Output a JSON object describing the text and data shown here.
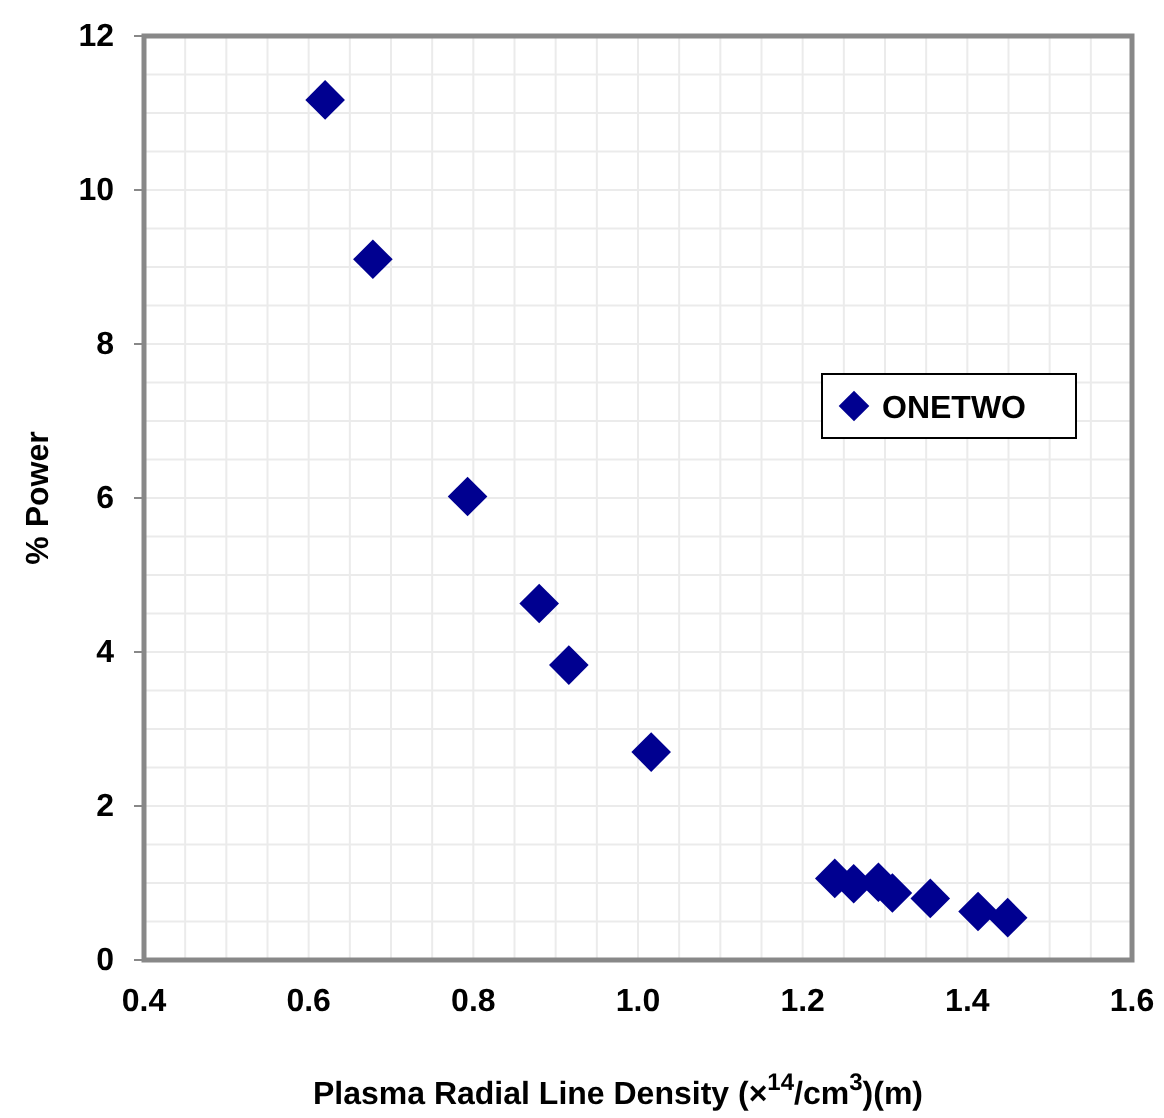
{
  "chart_data": {
    "type": "scatter",
    "xlabel": "Plasma Radial Line Density (×$^{14}$/cm$^{3}$)(m)",
    "ylabel": "% Power",
    "xlim": [
      0.4,
      1.6
    ],
    "xticks": [
      {
        "value": 0.4,
        "label": "0.4"
      },
      {
        "value": 0.6,
        "label": "0.6"
      },
      {
        "value": 0.8,
        "label": "0.8"
      },
      {
        "value": 1.0,
        "label": "1.0"
      },
      {
        "value": 1.2,
        "label": "1.2"
      },
      {
        "value": 1.4,
        "label": "1.4"
      },
      {
        "value": 1.6,
        "label": "1.6"
      }
    ],
    "ylim": [
      0,
      12
    ],
    "yticks": [
      0,
      2,
      4,
      6,
      8,
      10,
      12
    ],
    "grid": true,
    "legend": "right",
    "marker": "diamond",
    "series": [
      {
        "name": "ONETWO",
        "color": "#000090",
        "x": [
          0.62,
          0.678,
          0.793,
          0.88,
          0.916,
          1.016,
          1.239,
          1.262,
          1.292,
          1.309,
          1.355,
          1.413,
          1.449
        ],
        "values": [
          11.17,
          9.1,
          6.02,
          4.63,
          3.83,
          2.7,
          1.06,
          0.99,
          1.01,
          0.87,
          0.8,
          0.63,
          0.55
        ]
      }
    ]
  }
}
